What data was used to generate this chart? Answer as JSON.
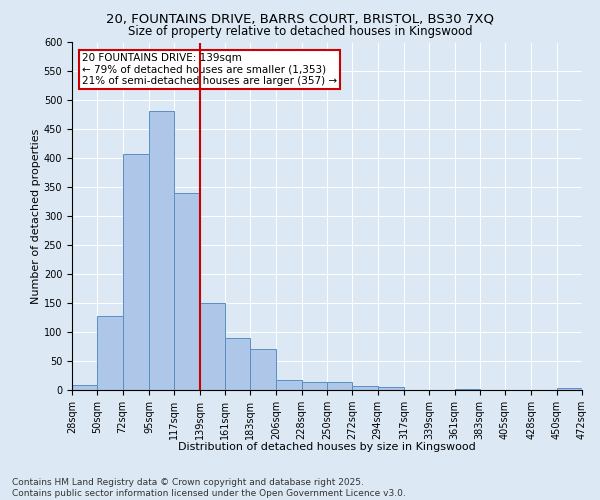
{
  "title_line1": "20, FOUNTAINS DRIVE, BARRS COURT, BRISTOL, BS30 7XQ",
  "title_line2": "Size of property relative to detached houses in Kingswood",
  "xlabel": "Distribution of detached houses by size in Kingswood",
  "ylabel": "Number of detached properties",
  "bar_color": "#aec6e8",
  "bar_edge_color": "#5a8fc2",
  "vline_color": "#cc0000",
  "vline_x": 139,
  "annotation_title": "20 FOUNTAINS DRIVE: 139sqm",
  "annotation_line1": "← 79% of detached houses are smaller (1,353)",
  "annotation_line2": "21% of semi-detached houses are larger (357) →",
  "bins": [
    28,
    50,
    72,
    95,
    117,
    139,
    161,
    183,
    206,
    228,
    250,
    272,
    294,
    317,
    339,
    361,
    383,
    405,
    428,
    450,
    472
  ],
  "counts": [
    8,
    127,
    408,
    481,
    340,
    150,
    90,
    70,
    17,
    13,
    13,
    7,
    5,
    0,
    0,
    2,
    0,
    0,
    0,
    4
  ],
  "ylim": [
    0,
    600
  ],
  "yticks": [
    0,
    50,
    100,
    150,
    200,
    250,
    300,
    350,
    400,
    450,
    500,
    550,
    600
  ],
  "background_color": "#dce9f5",
  "plot_bg_color": "#dce9f5",
  "footer_line1": "Contains HM Land Registry data © Crown copyright and database right 2025.",
  "footer_line2": "Contains public sector information licensed under the Open Government Licence v3.0.",
  "title_fontsize": 9.5,
  "title2_fontsize": 8.5,
  "axis_label_fontsize": 8,
  "tick_fontsize": 7,
  "footer_fontsize": 6.5,
  "annotation_fontsize": 7.5
}
